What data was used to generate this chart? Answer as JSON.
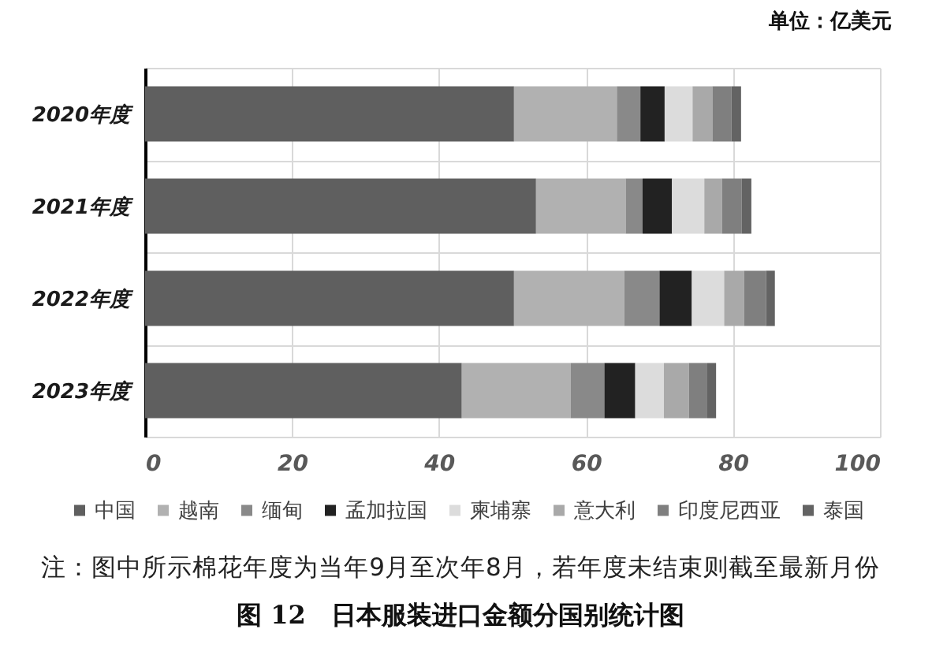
{
  "chart_data": {
    "type": "bar",
    "orientation": "horizontal",
    "stacked": true,
    "title": "图 12　日本服装进口金额分国别统计图",
    "xlabel": "单位：亿美元",
    "annotations": [
      "注：图中所示棉花年度为当年9月至次年8月，若年度未结束则截至最新月份"
    ],
    "categories": [
      "2020年度",
      "2021年度",
      "2022年度",
      "2023年度"
    ],
    "series": [
      {
        "name": "中国",
        "color": "#5f5f5f",
        "values": [
          50.2,
          53.2,
          50.2,
          43.1
        ]
      },
      {
        "name": "越南",
        "color": "#b1b1b1",
        "values": [
          14.0,
          12.2,
          15.0,
          14.8
        ]
      },
      {
        "name": "缅甸",
        "color": "#898989",
        "values": [
          3.2,
          2.3,
          4.8,
          4.6
        ]
      },
      {
        "name": "孟加拉国",
        "color": "#222222",
        "values": [
          3.3,
          4.0,
          4.4,
          4.2
        ]
      },
      {
        "name": "柬埔寨",
        "color": "#dcdcdc",
        "values": [
          3.8,
          4.4,
          4.4,
          3.9
        ]
      },
      {
        "name": "意大利",
        "color": "#a9a9a9",
        "values": [
          2.7,
          2.4,
          2.7,
          3.4
        ]
      },
      {
        "name": "印度尼西亚",
        "color": "#7f7f7f",
        "values": [
          2.6,
          2.7,
          3.0,
          2.5
        ]
      },
      {
        "name": "泰国",
        "color": "#636363",
        "values": [
          1.3,
          1.3,
          1.2,
          1.2
        ]
      }
    ],
    "xlim": [
      0,
      100
    ],
    "xticks": [
      0,
      20,
      40,
      60,
      80,
      100
    ],
    "grid": true,
    "legend": "bottom"
  }
}
